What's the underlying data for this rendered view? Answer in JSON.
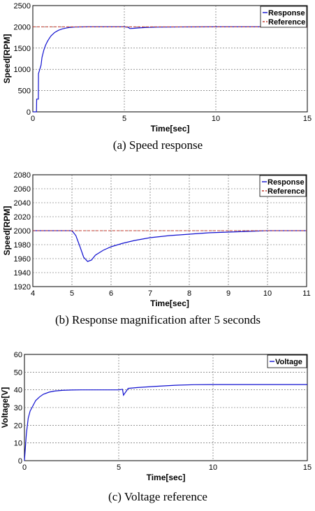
{
  "colors": {
    "response": "#1010d0",
    "reference": "#c0392b",
    "voltage": "#1010d0"
  },
  "chart_data": [
    {
      "type": "line",
      "caption": "(a)  Speed  response",
      "xlabel": "Time[sec]",
      "ylabel": "Speed[RPM]",
      "xlim": [
        0,
        15
      ],
      "ylim": [
        0,
        2500
      ],
      "xticks": [
        0,
        5,
        10,
        15
      ],
      "yticks": [
        0,
        500,
        1000,
        1500,
        2000,
        2500
      ],
      "grid": true,
      "legend": "top-right",
      "series": [
        {
          "name": "Response",
          "style": "solid",
          "x": [
            0,
            0.2,
            0.21,
            0.3,
            0.31,
            0.45,
            0.5,
            0.6,
            0.7,
            0.8,
            0.9,
            1.0,
            1.2,
            1.4,
            1.6,
            1.8,
            2.0,
            2.3,
            2.6,
            3.0,
            3.5,
            4.0,
            4.5,
            5.0,
            5.2,
            5.3,
            5.5,
            5.8,
            6.2,
            6.8,
            7.5,
            8.5,
            10.0,
            11.0,
            12.0,
            13.0,
            14.0,
            15.0
          ],
          "y": [
            0,
            0,
            300,
            300,
            900,
            1100,
            1280,
            1450,
            1570,
            1660,
            1730,
            1790,
            1870,
            1920,
            1950,
            1970,
            1985,
            1995,
            1998,
            2000,
            2000,
            2000,
            2000,
            2000,
            1990,
            1960,
            1965,
            1975,
            1985,
            1993,
            1997,
            1999,
            2000,
            2000,
            2000,
            2000,
            2000,
            2000
          ]
        },
        {
          "name": "Reference",
          "style": "dashed",
          "x": [
            0,
            15
          ],
          "y": [
            2000,
            2000
          ]
        }
      ]
    },
    {
      "type": "line",
      "caption": "(b)  Response  magnification  after  5  seconds",
      "xlabel": "Time[sec]",
      "ylabel": "Speed[RPM]",
      "xlim": [
        4,
        11
      ],
      "ylim": [
        1920,
        2080
      ],
      "xticks": [
        4,
        5,
        6,
        7,
        8,
        9,
        10,
        11
      ],
      "yticks": [
        1920,
        1940,
        1960,
        1980,
        2000,
        2020,
        2040,
        2060,
        2080
      ],
      "grid": true,
      "legend": "top-right",
      "series": [
        {
          "name": "Response",
          "style": "solid",
          "x": [
            4.0,
            4.5,
            5.0,
            5.1,
            5.2,
            5.3,
            5.4,
            5.5,
            5.6,
            5.8,
            6.0,
            6.3,
            6.6,
            7.0,
            7.5,
            8.0,
            8.5,
            9.0,
            9.5,
            10.0,
            10.5,
            11.0
          ],
          "y": [
            2000,
            2000,
            2000,
            1993,
            1978,
            1962,
            1956,
            1958,
            1965,
            1972,
            1977,
            1982,
            1986,
            1990,
            1993,
            1995,
            1997,
            1998,
            1999,
            2000,
            2000,
            2000
          ]
        },
        {
          "name": "Reference",
          "style": "dashed",
          "x": [
            4,
            11
          ],
          "y": [
            2000,
            2000
          ]
        }
      ]
    },
    {
      "type": "line",
      "caption": "(c)  Voltage  reference",
      "xlabel": "Time[sec]",
      "ylabel": "Voltage[V]",
      "xlim": [
        0,
        15
      ],
      "ylim": [
        0,
        60
      ],
      "xticks": [
        0,
        5,
        10,
        15
      ],
      "yticks": [
        0,
        10,
        20,
        30,
        40,
        50,
        60
      ],
      "grid": true,
      "legend": "top-right",
      "series": [
        {
          "name": "Voltage",
          "style": "solid",
          "x": [
            0,
            0.1,
            0.2,
            0.3,
            0.4,
            0.5,
            0.6,
            0.8,
            1.0,
            1.3,
            1.6,
            2.0,
            2.5,
            3.0,
            4.0,
            5.0,
            5.2,
            5.25,
            5.5,
            6.0,
            7.0,
            8.0,
            9.0,
            10.0,
            11.0,
            12.0,
            13.0,
            14.0,
            15.0
          ],
          "y": [
            0,
            15,
            24,
            28,
            30,
            32,
            34,
            36,
            37.5,
            38.7,
            39.3,
            39.7,
            39.9,
            40,
            40,
            40,
            40.3,
            37,
            40.8,
            41.3,
            42,
            42.6,
            42.9,
            43,
            43,
            43,
            43,
            43,
            43
          ]
        }
      ]
    }
  ]
}
